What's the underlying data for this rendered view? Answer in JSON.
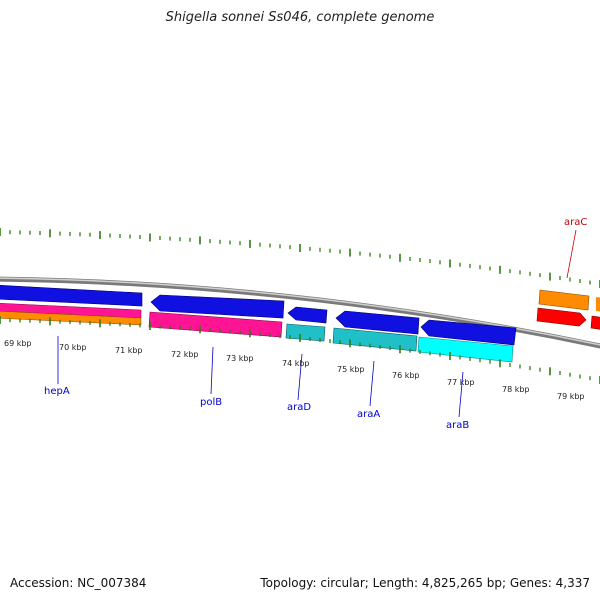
{
  "title": "Shigella sonnei Ss046, complete genome",
  "footer": {
    "accession": "Accession: NC_007384",
    "summary": "Topology: circular; Length: 4,825,265 bp; Genes: 4,337"
  },
  "ruler": {
    "unit": "kbp",
    "labels": [
      "69 kbp",
      "70 kbp",
      "71 kbp",
      "72 kbp",
      "73 kbp",
      "74 kbp",
      "75 kbp",
      "76 kbp",
      "77 kbp",
      "78 kbp",
      "79 kbp"
    ]
  },
  "genes": [
    {
      "name": "hepA",
      "strand": "-",
      "color": "#0000cc"
    },
    {
      "name": "polB",
      "strand": "-",
      "color": "#0000cc"
    },
    {
      "name": "araD",
      "strand": "-",
      "color": "#0000cc"
    },
    {
      "name": "araA",
      "strand": "-",
      "color": "#0000cc"
    },
    {
      "name": "araB",
      "strand": "-",
      "color": "#0000cc"
    },
    {
      "name": "araC",
      "strand": "+",
      "color": "#cc0000"
    }
  ],
  "colors": {
    "cds_forward_blue": "#1010e0",
    "pink": "#ff1493",
    "orange": "#ff8c00",
    "teal": "#20c0c8",
    "cyan": "#00ffff",
    "red": "#ff0000",
    "backbone": "#8a8a8a",
    "tick": "#2e7d12"
  }
}
